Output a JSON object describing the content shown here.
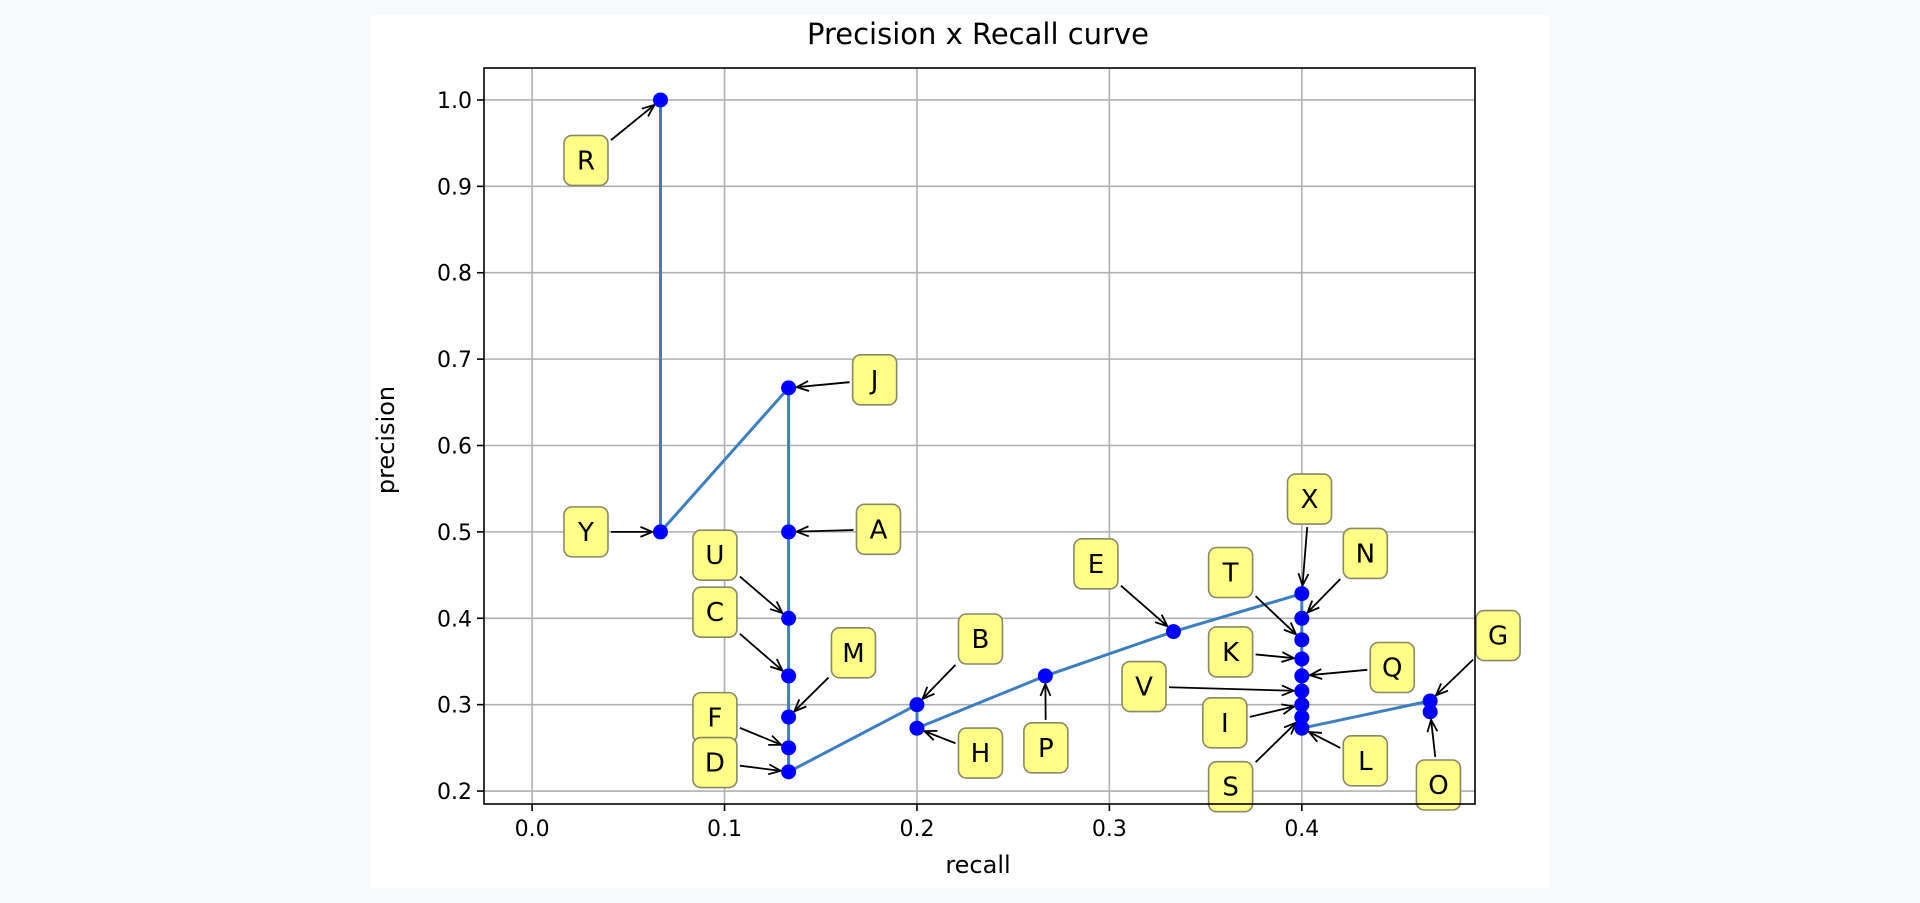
{
  "chart_data": {
    "type": "line",
    "title": "Precision x Recall curve",
    "xlabel": "recall",
    "ylabel": "precision",
    "xlim": [
      -0.025,
      0.49
    ],
    "ylim": [
      0.185,
      1.037
    ],
    "xticks": [
      {
        "value": 0.0,
        "label": "0.0"
      },
      {
        "value": 0.1,
        "label": "0.1"
      },
      {
        "value": 0.2,
        "label": "0.2"
      },
      {
        "value": 0.3,
        "label": "0.3"
      },
      {
        "value": 0.4,
        "label": "0.4"
      }
    ],
    "yticks": [
      {
        "value": 0.2,
        "label": "0.2"
      },
      {
        "value": 0.3,
        "label": "0.3"
      },
      {
        "value": 0.4,
        "label": "0.4"
      },
      {
        "value": 0.5,
        "label": "0.5"
      },
      {
        "value": 0.6,
        "label": "0.6"
      },
      {
        "value": 0.7,
        "label": "0.7"
      },
      {
        "value": 0.8,
        "label": "0.8"
      },
      {
        "value": 0.9,
        "label": "0.9"
      },
      {
        "value": 1.0,
        "label": "1.0"
      }
    ],
    "grid": true,
    "line_color": "#3b7fc0",
    "marker_color": "#0000ff",
    "label_box_color": "#ffff88",
    "label_border_color": "#888866",
    "points": [
      {
        "label": "R",
        "x": 0.0667,
        "y": 1.0
      },
      {
        "label": "Y",
        "x": 0.0667,
        "y": 0.5
      },
      {
        "label": "J",
        "x": 0.1333,
        "y": 0.6667
      },
      {
        "label": "A",
        "x": 0.1333,
        "y": 0.5
      },
      {
        "label": "U",
        "x": 0.1333,
        "y": 0.4
      },
      {
        "label": "C",
        "x": 0.1333,
        "y": 0.3333
      },
      {
        "label": "M",
        "x": 0.1333,
        "y": 0.2857
      },
      {
        "label": "F",
        "x": 0.1333,
        "y": 0.25
      },
      {
        "label": "D",
        "x": 0.1333,
        "y": 0.2222
      },
      {
        "label": "B",
        "x": 0.2,
        "y": 0.3
      },
      {
        "label": "H",
        "x": 0.2,
        "y": 0.2727
      },
      {
        "label": "P",
        "x": 0.2667,
        "y": 0.3333
      },
      {
        "label": "E",
        "x": 0.3333,
        "y": 0.3846
      },
      {
        "label": "X",
        "x": 0.4,
        "y": 0.4286
      },
      {
        "label": "N",
        "x": 0.4,
        "y": 0.4
      },
      {
        "label": "T",
        "x": 0.4,
        "y": 0.375
      },
      {
        "label": "K",
        "x": 0.4,
        "y": 0.3529
      },
      {
        "label": "Q",
        "x": 0.4,
        "y": 0.3333
      },
      {
        "label": "V",
        "x": 0.4,
        "y": 0.3158
      },
      {
        "label": "I",
        "x": 0.4,
        "y": 0.3
      },
      {
        "label": "S",
        "x": 0.4,
        "y": 0.2857
      },
      {
        "label": "L",
        "x": 0.4,
        "y": 0.2727
      },
      {
        "label": "G",
        "x": 0.4667,
        "y": 0.3043
      },
      {
        "label": "O",
        "x": 0.4667,
        "y": 0.2917
      }
    ],
    "annotation_labels": [
      {
        "label": "R",
        "x": 0.028,
        "y": 0.93
      },
      {
        "label": "Y",
        "x": 0.028,
        "y": 0.5
      },
      {
        "label": "J",
        "x": 0.178,
        "y": 0.676
      },
      {
        "label": "A",
        "x": 0.18,
        "y": 0.503
      },
      {
        "label": "U",
        "x": 0.095,
        "y": 0.473
      },
      {
        "label": "C",
        "x": 0.095,
        "y": 0.407
      },
      {
        "label": "M",
        "x": 0.167,
        "y": 0.36
      },
      {
        "label": "F",
        "x": 0.095,
        "y": 0.285
      },
      {
        "label": "D",
        "x": 0.095,
        "y": 0.233
      },
      {
        "label": "B",
        "x": 0.233,
        "y": 0.376
      },
      {
        "label": "H",
        "x": 0.233,
        "y": 0.244
      },
      {
        "label": "P",
        "x": 0.267,
        "y": 0.25
      },
      {
        "label": "E",
        "x": 0.293,
        "y": 0.463
      },
      {
        "label": "X",
        "x": 0.404,
        "y": 0.538
      },
      {
        "label": "N",
        "x": 0.433,
        "y": 0.475
      },
      {
        "label": "T",
        "x": 0.363,
        "y": 0.453
      },
      {
        "label": "K",
        "x": 0.363,
        "y": 0.361
      },
      {
        "label": "Q",
        "x": 0.447,
        "y": 0.343
      },
      {
        "label": "V",
        "x": 0.318,
        "y": 0.321
      },
      {
        "label": "I",
        "x": 0.36,
        "y": 0.279
      },
      {
        "label": "S",
        "x": 0.363,
        "y": 0.205
      },
      {
        "label": "L",
        "x": 0.433,
        "y": 0.235
      },
      {
        "label": "G",
        "x": 0.502,
        "y": 0.38
      },
      {
        "label": "O",
        "x": 0.471,
        "y": 0.207
      }
    ]
  }
}
